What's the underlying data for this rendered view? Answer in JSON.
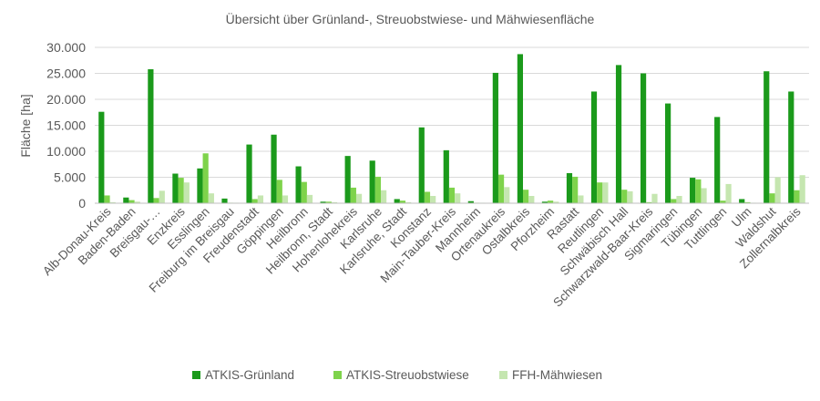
{
  "chart_data": {
    "type": "bar",
    "title": "Übersicht über Grünland-, Streuobstwiese- und Mähwiesenfläche",
    "ylabel": "Fläche [ha]",
    "xlabel": "",
    "ylim": [
      0,
      30000
    ],
    "yticks": [
      0,
      5000,
      10000,
      15000,
      20000,
      25000,
      30000
    ],
    "ytick_labels": [
      "0",
      "5.000",
      "10.000",
      "15.000",
      "20.000",
      "25.000",
      "30.000"
    ],
    "grid": true,
    "legend_position": "bottom",
    "categories": [
      "Alb-Donau-Kreis",
      "Baden-Baden",
      "Breisgau-…",
      "Enzkreis",
      "Esslingen",
      "Freiburg im Breisgau",
      "Freudenstadt",
      "Göppingen",
      "Heilbronn",
      "Heilbronn, Stadt",
      "Hohenlohekreis",
      "Karlsruhe",
      "Karlsruhe, Stadt",
      "Konstanz",
      "Main-Tauber-Kreis",
      "Mannheim",
      "Ortenaukreis",
      "Ostalbkreis",
      "Pforzheim",
      "Rastatt",
      "Reutlingen",
      "Schwäbisch Hall",
      "Schwarzwald-Baar-Kreis",
      "Sigmaringen",
      "Tübingen",
      "Tuttlingen",
      "Ulm",
      "Waldshut",
      "Zollernalbkreis"
    ],
    "series": [
      {
        "name": "ATKIS-Grünland",
        "color": "#1b9a1b",
        "values": [
          17600,
          1100,
          25800,
          5700,
          6700,
          900,
          11300,
          13200,
          7100,
          300,
          9100,
          8200,
          800,
          14600,
          10200,
          400,
          25100,
          28700,
          300,
          5800,
          21500,
          26600,
          25000,
          19200,
          4900,
          16600,
          800,
          25400,
          21500
        ]
      },
      {
        "name": "ATKIS-Streuobstwiese",
        "color": "#7ed34b",
        "values": [
          1500,
          600,
          1000,
          4900,
          9600,
          100,
          800,
          4500,
          4100,
          300,
          3000,
          5100,
          500,
          2200,
          3000,
          100,
          5500,
          2600,
          500,
          5100,
          4000,
          2600,
          200,
          800,
          4600,
          500,
          200,
          1900,
          2500
        ]
      },
      {
        "name": "FFH-Mähwiesen",
        "color": "#c5e6b0",
        "values": [
          200,
          300,
          2400,
          4000,
          1900,
          100,
          1500,
          1500,
          1600,
          200,
          1800,
          2500,
          200,
          1400,
          1900,
          100,
          3100,
          1400,
          300,
          1500,
          4000,
          2300,
          1800,
          1400,
          2900,
          3700,
          100,
          5000,
          5400
        ]
      }
    ]
  }
}
